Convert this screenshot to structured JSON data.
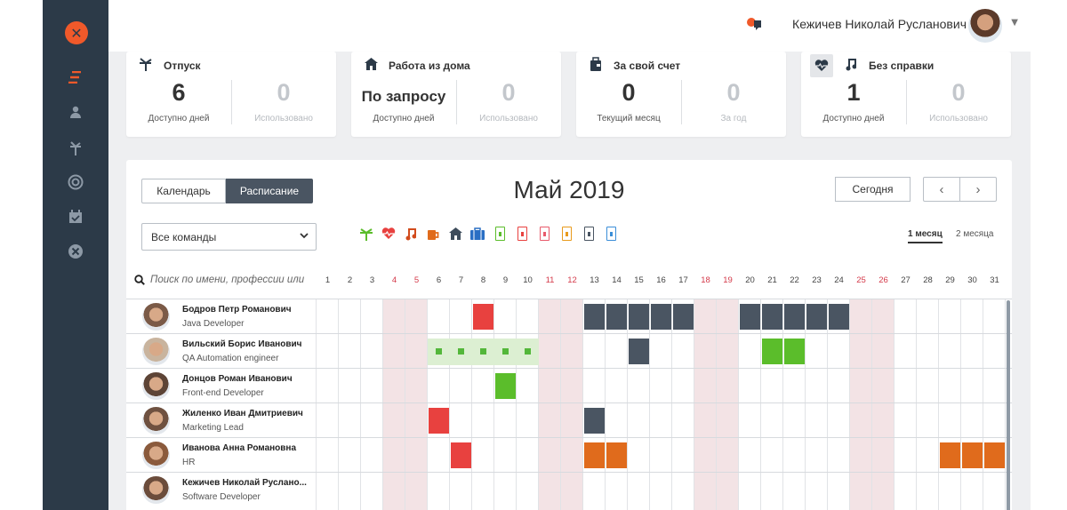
{
  "user": {
    "name": "Кежичев Николай Русланович"
  },
  "stats": [
    {
      "title": "Отпуск",
      "icon": "palm-icon",
      "left_value": "6",
      "left_label": "Доступно дней",
      "right_value": "0",
      "right_label": "Использовано"
    },
    {
      "title": "Работа из дома",
      "icon": "home-icon",
      "left_value": "По запросу",
      "left_label": "Доступно дней",
      "right_value": "0",
      "right_label": "Использовано"
    },
    {
      "title": "За свой счет",
      "icon": "wallet-icon",
      "left_value": "0",
      "left_label": "Текущий месяц",
      "right_value": "0",
      "right_label": "За год"
    },
    {
      "title": "Без справки",
      "icon": "note-icon",
      "left_value": "1",
      "left_label": "Доступно дней",
      "right_value": "0",
      "right_label": "Использовано"
    }
  ],
  "view_tabs": {
    "calendar": "Календарь",
    "schedule": "Расписание"
  },
  "month_title": "Май 2019",
  "today_button": "Сегодня",
  "nav": {
    "prev": "‹",
    "next": "›"
  },
  "team_select": {
    "value": "Все команды"
  },
  "range_tabs": {
    "one_month": "1 месяц",
    "two_months": "2 месяца"
  },
  "search": {
    "placeholder": "Поиск по имени, профессии или"
  },
  "days": [
    "1",
    "2",
    "3",
    "4",
    "5",
    "6",
    "7",
    "8",
    "9",
    "10",
    "11",
    "12",
    "13",
    "14",
    "15",
    "16",
    "17",
    "18",
    "19",
    "20",
    "21",
    "22",
    "23",
    "24",
    "25",
    "26",
    "27",
    "28",
    "29",
    "30",
    "31"
  ],
  "weekend_days": [
    4,
    5,
    11,
    12,
    18,
    19,
    25,
    26
  ],
  "colors": {
    "sick": "#e8413f",
    "busy": "#4a5562",
    "vacation_green": "#5bbd2b",
    "orange": "#e06b1c",
    "wfh_bg": "#dcefd2",
    "wfh_dot": "#53b73a",
    "accent": "#f0592a"
  },
  "legend": [
    {
      "name": "palm-icon",
      "color": "#5bbd2b"
    },
    {
      "name": "heart-icon",
      "color": "#e8413f"
    },
    {
      "name": "music-note-icon",
      "color": "#d24b1c"
    },
    {
      "name": "mug-icon",
      "color": "#e06b1c"
    },
    {
      "name": "home-icon",
      "color": "#3e4c5b"
    },
    {
      "name": "suitcase-icon",
      "color": "#2a6fc4"
    },
    {
      "name": "doc-green-icon",
      "color": "#5bbd2b"
    },
    {
      "name": "doc-red-icon",
      "color": "#e8413f"
    },
    {
      "name": "doc-pink-icon",
      "color": "#e85a6b"
    },
    {
      "name": "doc-orange-icon",
      "color": "#e89a1c"
    },
    {
      "name": "doc-gray-icon",
      "color": "#4a5562"
    },
    {
      "name": "doc-blue-icon",
      "color": "#3b8ed8"
    }
  ],
  "employees": [
    {
      "name": "Бодров Петр Романович",
      "role": "Java Developer",
      "blocks": [
        {
          "from": 8,
          "to": 8,
          "kind": "sick"
        },
        {
          "from": 13,
          "to": 17,
          "kind": "busy"
        },
        {
          "from": 20,
          "to": 24,
          "kind": "busy"
        }
      ]
    },
    {
      "name": "Вильский Борис Иванович",
      "role": "QA Automation engineer",
      "wfh": [
        6,
        10
      ],
      "blocks": [
        {
          "from": 15,
          "to": 15,
          "kind": "busy"
        },
        {
          "from": 21,
          "to": 22,
          "kind": "vacation_green"
        }
      ]
    },
    {
      "name": "Донцов Роман Иванович",
      "role": "Front-end Developer",
      "blocks": [
        {
          "from": 9,
          "to": 9,
          "kind": "vacation_green"
        }
      ]
    },
    {
      "name": "Жиленко Иван Дмитриевич",
      "role": "Marketing Lead",
      "blocks": [
        {
          "from": 6,
          "to": 6,
          "kind": "sick"
        },
        {
          "from": 13,
          "to": 13,
          "kind": "busy"
        }
      ]
    },
    {
      "name": "Иванова Анна Романовна",
      "role": "HR",
      "blocks": [
        {
          "from": 7,
          "to": 7,
          "kind": "sick"
        },
        {
          "from": 13,
          "to": 14,
          "kind": "orange"
        },
        {
          "from": 29,
          "to": 31,
          "kind": "orange"
        }
      ]
    },
    {
      "name": "Кежичев Николай Руслано...",
      "role": "Software Developer",
      "blocks": []
    }
  ]
}
